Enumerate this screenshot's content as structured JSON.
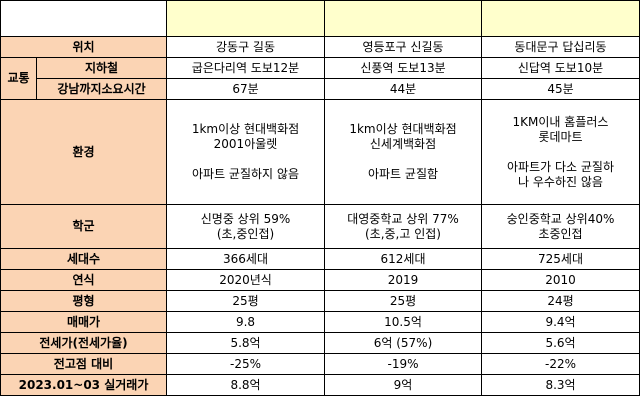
{
  "header_label": "위치",
  "locations": [
    "강동구 길동",
    "영등포구 신길동",
    "동대문구 답십리동"
  ],
  "transport": {
    "group_label": "교통",
    "subway_label": "지하철",
    "subway": [
      "굽은다리역 도보12분",
      "신풍역 도보13분",
      "신답역 도보10분"
    ],
    "commute_label": "강남까지소요시간",
    "commute": [
      "67분",
      "44분",
      "45분"
    ]
  },
  "environment": {
    "label": "환경",
    "cols": [
      {
        "lines": [
          "1km이상 현대백화점",
          "2001아울렛"
        ],
        "note": "아파트 균질하지 않음"
      },
      {
        "lines": [
          "1km이상 현대백화점",
          "신세계백화점"
        ],
        "note": "아파트 균질함"
      },
      {
        "lines": [
          "1KM이내 홈플러스",
          "롯데마트"
        ],
        "note": "아파트가 다소 균질하",
        "note2": "나 우수하진 않음"
      }
    ]
  },
  "school": {
    "label": "학군",
    "cols": [
      [
        "신명중 상위 59%",
        "(초,중인접)"
      ],
      [
        "대영중학교 상위 77%",
        "(초,중,고 인접)"
      ],
      [
        "숭인중학교 상위40%",
        "초중인접"
      ]
    ]
  },
  "rows": [
    {
      "label": "세대수",
      "values": [
        "366세대",
        "612세대",
        "725세대"
      ]
    },
    {
      "label": "연식",
      "values": [
        "2020년식",
        "2019",
        "2010"
      ]
    },
    {
      "label": "평형",
      "values": [
        "25평",
        "25평",
        "24평"
      ]
    },
    {
      "label": "매매가",
      "values": [
        "9.8",
        "10.5억",
        "9.4억"
      ]
    },
    {
      "label": "전세가(전세가율)",
      "values": [
        "5.8억",
        "6억 (57%)",
        "5.6억"
      ]
    },
    {
      "label": "전고점 대비",
      "values": [
        "-25%",
        "-19%",
        "-22%"
      ]
    },
    {
      "label": "2023.01~03 실거래가",
      "values": [
        "8.8억",
        "9억",
        "8.3억"
      ]
    }
  ],
  "colors": {
    "label_bg": "#fbd4b4",
    "header_bg": "#ffffcc",
    "border": "#000000"
  }
}
